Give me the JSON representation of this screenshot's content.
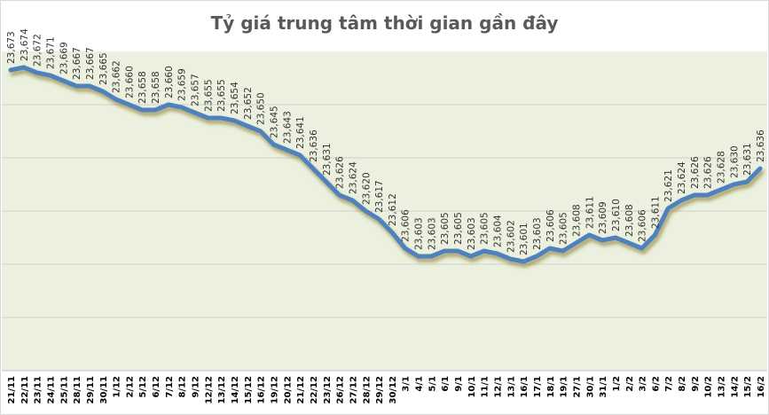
{
  "chart_data": {
    "type": "line",
    "title": "Tỷ giá trung tâm thời gian gần đây",
    "xlabel": "",
    "ylabel": "",
    "ylim": [
      23560,
      23680
    ],
    "grid": true,
    "legend": "none",
    "line_color": "#4f81bd",
    "plot_background": "#ebf1de",
    "categories": [
      "21/11",
      "22/11",
      "23/11",
      "24/11",
      "25/11",
      "28/11",
      "29/11",
      "30/11",
      "1/12",
      "2/12",
      "5/12",
      "6/12",
      "7/12",
      "8/12",
      "9/12",
      "12/12",
      "13/12",
      "14/12",
      "15/12",
      "16/12",
      "19/12",
      "20/12",
      "21/12",
      "22/12",
      "23/12",
      "26/12",
      "27/12",
      "28/12",
      "29/12",
      "30/12",
      "3/1",
      "4/1",
      "5/1",
      "6/1",
      "9/1",
      "10/1",
      "11/1",
      "12/1",
      "13/1",
      "16/1",
      "17/1",
      "18/1",
      "19/1",
      "27/1",
      "30/1",
      "31/1",
      "1/2",
      "2/2",
      "3/2",
      "6/2",
      "7/2",
      "8/2",
      "9/2",
      "10/2",
      "13/2",
      "14/2",
      "15/2",
      "16/2"
    ],
    "values": [
      23673,
      23674,
      23672,
      23671,
      23669,
      23667,
      23667,
      23665,
      23662,
      23660,
      23658,
      23658,
      23660,
      23659,
      23657,
      23655,
      23655,
      23654,
      23652,
      23650,
      23645,
      23643,
      23641,
      23636,
      23631,
      23626,
      23624,
      23620,
      23617,
      23612,
      23606,
      23603,
      23603,
      23605,
      23605,
      23603,
      23605,
      23604,
      23602,
      23601,
      23603,
      23606,
      23605,
      23608,
      23611,
      23609,
      23610,
      23608,
      23606,
      23611,
      23621,
      23624,
      23626,
      23626,
      23628,
      23630,
      23631,
      23636
    ]
  }
}
